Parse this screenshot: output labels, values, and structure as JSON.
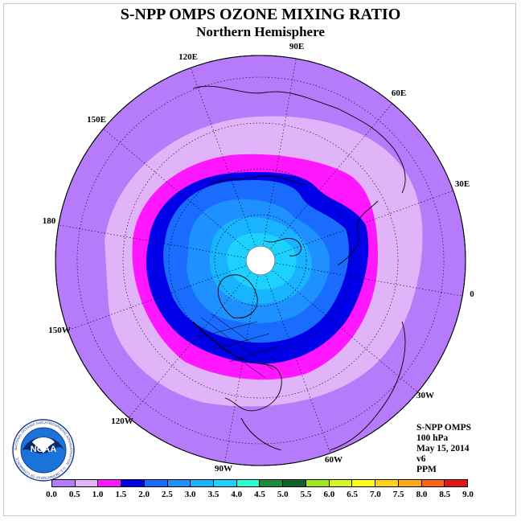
{
  "title": "S-NPP OMPS OZONE MIXING RATIO",
  "subtitle": "Northern Hemisphere",
  "longitude_labels": [
    "90E",
    "60E",
    "30E",
    "0",
    "30W",
    "60W",
    "90W",
    "120W",
    "150W",
    "180",
    "150E",
    "120E"
  ],
  "info": {
    "instrument": "S-NPP OMPS",
    "level": "100 hPa",
    "date": "May 15, 2014",
    "version": "v6",
    "units": "PPM"
  },
  "logo": {
    "text": "NOAA",
    "ring_text": "NATIONAL OCEANIC AND ATMOSPHERIC ADMINISTRATION · U.S. DEPARTMENT OF COMMERCE"
  },
  "colorbar": {
    "ticks": [
      "0.0",
      "0.5",
      "1.0",
      "1.5",
      "2.0",
      "2.5",
      "3.0",
      "3.5",
      "4.0",
      "4.5",
      "5.0",
      "5.5",
      "6.0",
      "6.5",
      "7.0",
      "7.5",
      "8.0",
      "8.5",
      "9.0"
    ],
    "colors": [
      "#b57bfa",
      "#e1b4fa",
      "#ff18ff",
      "#0000e8",
      "#1a6cff",
      "#1e90ff",
      "#18b4ff",
      "#1ed2ff",
      "#28ffd2",
      "#1c8c3c",
      "#0e6428",
      "#a0e61e",
      "#d7f51e",
      "#ffff14",
      "#ffd214",
      "#ffaa14",
      "#ff6414",
      "#e61414",
      "#8c5a3c"
    ]
  },
  "map_colors": {
    "ocean_outer": "#b57bfa",
    "ring_light": "#e1b4fa",
    "ring_magenta": "#ff18ff",
    "ring_dark_blue": "#0000e8",
    "ring_blue": "#1a6cff",
    "ring_mid": "#1e90ff",
    "ring_sky": "#18b4ff",
    "ring_cyan": "#1ed2ff",
    "pole_mask": "#ffffff"
  }
}
